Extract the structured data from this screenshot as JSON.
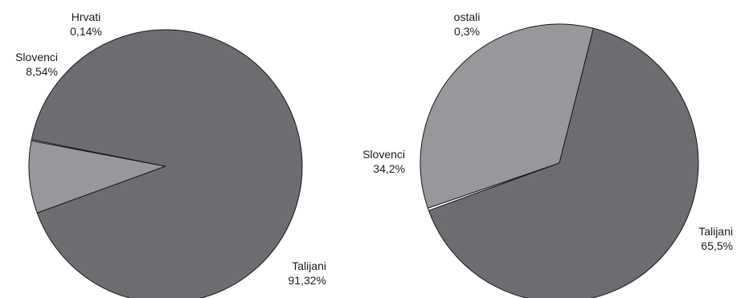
{
  "chart_data": [
    {
      "type": "pie",
      "slices": [
        {
          "name": "Talijani",
          "value": 91.32,
          "label": "91,32%",
          "color": "#6c6d71"
        },
        {
          "name": "Slovenci",
          "value": 8.54,
          "label": "8,54%",
          "color": "#97989b"
        },
        {
          "name": "Hrvati",
          "value": 0.14,
          "label": "0,14%",
          "color": "#ffffff"
        }
      ]
    },
    {
      "type": "pie",
      "slices": [
        {
          "name": "Talijani",
          "value": 65.5,
          "label": "65,5%",
          "color": "#6c6d71"
        },
        {
          "name": "Slovenci",
          "value": 34.2,
          "label": "34,2%",
          "color": "#97989b"
        },
        {
          "name": "ostali",
          "value": 0.3,
          "label": "0,3%",
          "color": "#ffffff"
        }
      ]
    }
  ]
}
